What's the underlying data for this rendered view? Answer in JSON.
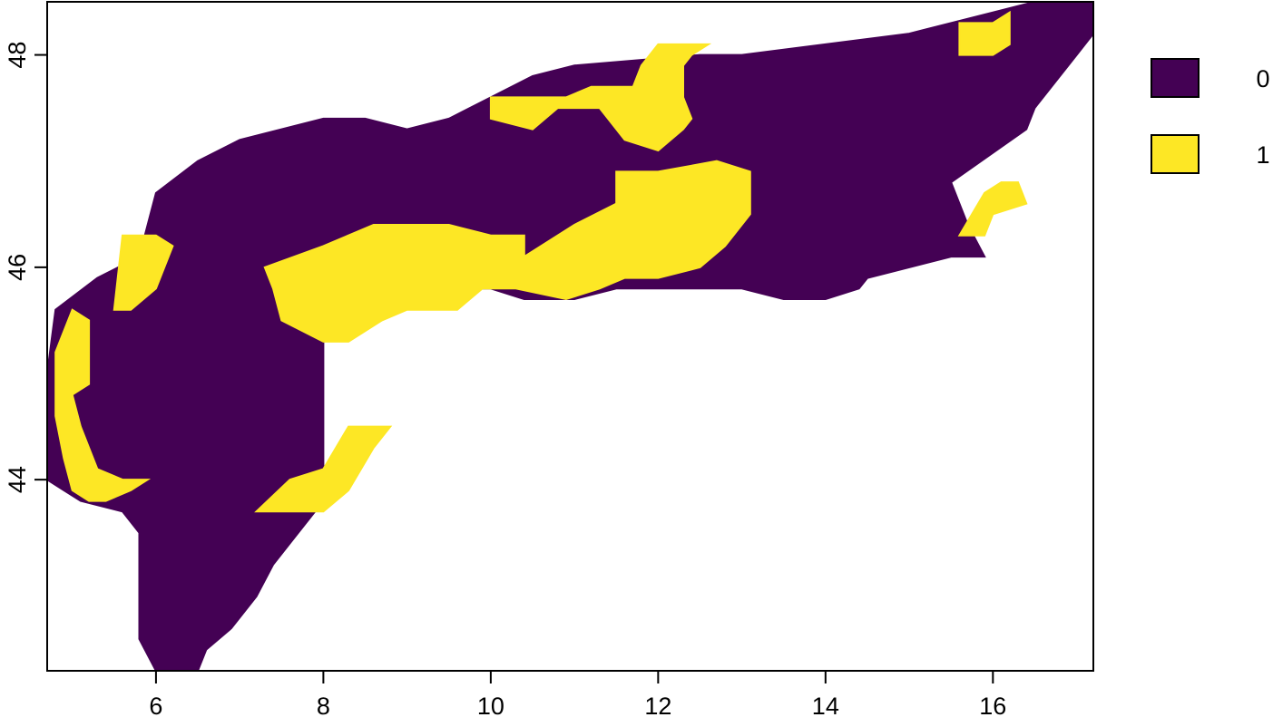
{
  "chart_data": {
    "type": "heatmap",
    "title": "",
    "xlabel": "",
    "ylabel": "",
    "xlim": [
      4.7,
      17.2
    ],
    "ylim": [
      42.2,
      48.5
    ],
    "x_ticks": [
      6,
      8,
      10,
      12,
      14,
      16
    ],
    "y_ticks": [
      44,
      46,
      48
    ],
    "grid": false,
    "legend_placement": "right",
    "classes": [
      {
        "label": "0",
        "value": 0,
        "color": "#440154"
      },
      {
        "label": "1",
        "value": 1,
        "color": "#FDE725"
      }
    ],
    "raster_description": "Binary raster over the Alpine region; class 0 covers most of the mountain range, class 1 patches occur along the southern slopes, the western Alps and north-central areas.",
    "regions": [
      {
        "class": 0,
        "polygon": [
          [
            4.7,
            44.0
          ],
          [
            4.9,
            43.9
          ],
          [
            5.1,
            43.8
          ],
          [
            5.6,
            43.7
          ],
          [
            5.8,
            43.5
          ],
          [
            5.8,
            42.5
          ],
          [
            6.0,
            42.2
          ],
          [
            6.5,
            42.2
          ],
          [
            6.6,
            42.4
          ],
          [
            6.9,
            42.6
          ],
          [
            7.2,
            42.9
          ],
          [
            7.4,
            43.2
          ],
          [
            7.6,
            43.4
          ],
          [
            8.0,
            43.8
          ],
          [
            8.0,
            44.6
          ],
          [
            8.0,
            45.3
          ],
          [
            8.2,
            45.4
          ],
          [
            8.4,
            45.5
          ],
          [
            9.0,
            45.8
          ],
          [
            9.5,
            45.8
          ],
          [
            10.0,
            45.8
          ],
          [
            10.4,
            45.7
          ],
          [
            11.0,
            45.7
          ],
          [
            11.5,
            45.8
          ],
          [
            12.0,
            45.8
          ],
          [
            12.5,
            45.8
          ],
          [
            13.0,
            45.8
          ],
          [
            13.5,
            45.7
          ],
          [
            14.0,
            45.7
          ],
          [
            14.4,
            45.8
          ],
          [
            14.5,
            45.9
          ],
          [
            15.0,
            46.0
          ],
          [
            15.5,
            46.1
          ],
          [
            15.9,
            46.1
          ],
          [
            15.7,
            46.4
          ],
          [
            15.5,
            46.8
          ],
          [
            16.4,
            47.3
          ],
          [
            16.5,
            47.5
          ],
          [
            16.8,
            47.8
          ],
          [
            17.0,
            48.0
          ],
          [
            17.2,
            48.2
          ],
          [
            17.2,
            48.5
          ],
          [
            16.5,
            48.5
          ],
          [
            16.0,
            48.4
          ],
          [
            15.0,
            48.2
          ],
          [
            14.0,
            48.1
          ],
          [
            13.0,
            48.0
          ],
          [
            12.5,
            48.0
          ],
          [
            11.0,
            47.9
          ],
          [
            10.5,
            47.8
          ],
          [
            10.0,
            47.6
          ],
          [
            9.5,
            47.4
          ],
          [
            9.0,
            47.3
          ],
          [
            8.5,
            47.4
          ],
          [
            8.0,
            47.4
          ],
          [
            7.0,
            47.2
          ],
          [
            6.5,
            47.0
          ],
          [
            6.0,
            46.7
          ],
          [
            5.8,
            46.1
          ],
          [
            5.3,
            45.9
          ],
          [
            4.8,
            45.6
          ],
          [
            4.7,
            45.0
          ]
        ]
      },
      {
        "class": 1,
        "polygon": [
          [
            7.3,
            46.0
          ],
          [
            8.0,
            46.2
          ],
          [
            8.6,
            46.4
          ],
          [
            9.5,
            46.4
          ],
          [
            10.0,
            46.3
          ],
          [
            10.4,
            46.3
          ],
          [
            10.4,
            46.1
          ],
          [
            11.0,
            46.4
          ],
          [
            11.5,
            46.6
          ],
          [
            11.5,
            46.9
          ],
          [
            12.0,
            46.9
          ],
          [
            12.7,
            47.0
          ],
          [
            13.1,
            46.9
          ],
          [
            13.1,
            46.5
          ],
          [
            12.8,
            46.2
          ],
          [
            12.5,
            46.0
          ],
          [
            12.0,
            45.9
          ],
          [
            11.6,
            45.9
          ],
          [
            11.3,
            45.8
          ],
          [
            10.9,
            45.7
          ],
          [
            10.3,
            45.8
          ],
          [
            9.9,
            45.8
          ],
          [
            9.6,
            45.6
          ],
          [
            9.3,
            45.6
          ],
          [
            9.0,
            45.6
          ],
          [
            8.7,
            45.5
          ],
          [
            8.3,
            45.3
          ],
          [
            8.0,
            45.3
          ],
          [
            7.5,
            45.5
          ],
          [
            7.4,
            45.8
          ]
        ]
      },
      {
        "class": 1,
        "polygon": [
          [
            10.0,
            47.6
          ],
          [
            10.9,
            47.6
          ],
          [
            11.2,
            47.7
          ],
          [
            11.7,
            47.7
          ],
          [
            11.8,
            47.9
          ],
          [
            12.0,
            48.1
          ],
          [
            12.6,
            48.1
          ],
          [
            12.4,
            48.0
          ],
          [
            12.3,
            47.9
          ],
          [
            12.3,
            47.6
          ],
          [
            12.4,
            47.4
          ],
          [
            12.3,
            47.3
          ],
          [
            12.0,
            47.1
          ],
          [
            11.6,
            47.2
          ],
          [
            11.3,
            47.5
          ],
          [
            10.8,
            47.5
          ],
          [
            10.5,
            47.3
          ],
          [
            10.0,
            47.4
          ]
        ]
      },
      {
        "class": 1,
        "polygon": [
          [
            8.0,
            44.1
          ],
          [
            8.3,
            44.5
          ],
          [
            8.8,
            44.5
          ],
          [
            8.6,
            44.3
          ],
          [
            8.3,
            43.9
          ],
          [
            8.0,
            43.7
          ],
          [
            7.5,
            43.7
          ],
          [
            7.2,
            43.7
          ],
          [
            7.6,
            44.0
          ],
          [
            8.0,
            44.1
          ]
        ]
      },
      {
        "class": 1,
        "polygon": [
          [
            5.0,
            45.6
          ],
          [
            5.2,
            45.5
          ],
          [
            5.2,
            44.9
          ],
          [
            5.0,
            44.8
          ],
          [
            5.1,
            44.5
          ],
          [
            5.3,
            44.1
          ],
          [
            5.6,
            44.0
          ],
          [
            5.9,
            44.0
          ],
          [
            5.7,
            43.9
          ],
          [
            5.4,
            43.8
          ],
          [
            5.2,
            43.8
          ],
          [
            5.0,
            43.9
          ],
          [
            4.9,
            44.2
          ],
          [
            4.8,
            44.6
          ],
          [
            4.8,
            45.2
          ]
        ]
      },
      {
        "class": 1,
        "polygon": [
          [
            15.6,
            46.3
          ],
          [
            15.9,
            46.3
          ],
          [
            16.0,
            46.5
          ],
          [
            16.4,
            46.6
          ],
          [
            16.3,
            46.8
          ],
          [
            16.1,
            46.8
          ],
          [
            15.9,
            46.7
          ]
        ]
      },
      {
        "class": 1,
        "polygon": [
          [
            15.6,
            48.3
          ],
          [
            16.0,
            48.3
          ],
          [
            16.2,
            48.4
          ],
          [
            16.2,
            48.1
          ],
          [
            16.0,
            48.0
          ],
          [
            15.6,
            48.0
          ]
        ]
      },
      {
        "class": 1,
        "polygon": [
          [
            5.6,
            46.3
          ],
          [
            6.0,
            46.3
          ],
          [
            6.2,
            46.2
          ],
          [
            6.0,
            45.8
          ],
          [
            5.7,
            45.6
          ],
          [
            5.5,
            45.6
          ]
        ]
      }
    ]
  }
}
